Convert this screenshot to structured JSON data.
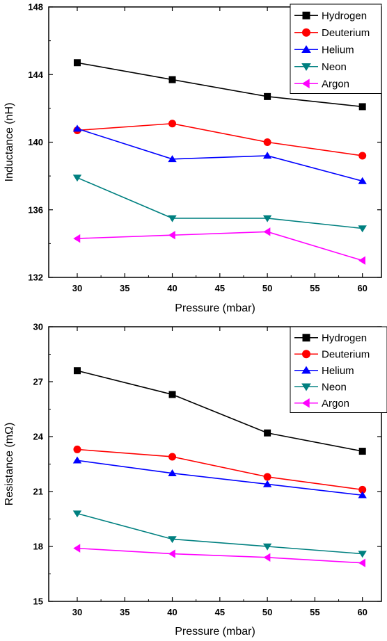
{
  "chart_data": [
    {
      "type": "line",
      "title": "",
      "xlabel": "Pressure (mbar)",
      "ylabel": "Inductance (nH)",
      "xlim": [
        27,
        62
      ],
      "ylim": [
        132,
        148
      ],
      "xticks": [
        30,
        35,
        40,
        45,
        50,
        55,
        60
      ],
      "yticks": [
        132,
        136,
        140,
        144,
        148
      ],
      "grid": false,
      "legend_position": "top-right",
      "x": [
        30,
        40,
        50,
        60
      ],
      "series": [
        {
          "name": "Hydrogen",
          "color": "#000000",
          "marker": "square",
          "values": [
            144.7,
            143.7,
            142.7,
            142.1
          ]
        },
        {
          "name": "Deuterium",
          "color": "#ff0000",
          "marker": "circle",
          "values": [
            140.7,
            141.1,
            140.0,
            139.2
          ]
        },
        {
          "name": "Helium",
          "color": "#0000ff",
          "marker": "triangle-up",
          "values": [
            140.8,
            139.0,
            139.2,
            137.7
          ]
        },
        {
          "name": "Neon",
          "color": "#008080",
          "marker": "triangle-down",
          "values": [
            137.9,
            135.5,
            135.5,
            134.9
          ]
        },
        {
          "name": "Argon",
          "color": "#ff00ff",
          "marker": "triangle-left",
          "values": [
            134.3,
            134.5,
            134.7,
            133.0
          ]
        }
      ]
    },
    {
      "type": "line",
      "title": "",
      "xlabel": "Pressure (mbar)",
      "ylabel": "Resistance (mΩ)",
      "xlim": [
        27,
        62
      ],
      "ylim": [
        15,
        30
      ],
      "xticks": [
        30,
        35,
        40,
        45,
        50,
        55,
        60
      ],
      "yticks": [
        15,
        18,
        21,
        24,
        27,
        30
      ],
      "grid": false,
      "legend_position": "top-right",
      "x": [
        30,
        40,
        50,
        60
      ],
      "series": [
        {
          "name": "Hydrogen",
          "color": "#000000",
          "marker": "square",
          "values": [
            27.6,
            26.3,
            24.2,
            23.2
          ]
        },
        {
          "name": "Deuterium",
          "color": "#ff0000",
          "marker": "circle",
          "values": [
            23.3,
            22.9,
            21.8,
            21.1
          ]
        },
        {
          "name": "Helium",
          "color": "#0000ff",
          "marker": "triangle-up",
          "values": [
            22.7,
            22.0,
            21.4,
            20.8
          ]
        },
        {
          "name": "Neon",
          "color": "#008080",
          "marker": "triangle-down",
          "values": [
            19.8,
            18.4,
            18.0,
            17.6
          ]
        },
        {
          "name": "Argon",
          "color": "#ff00ff",
          "marker": "triangle-left",
          "values": [
            17.9,
            17.6,
            17.4,
            17.1
          ]
        }
      ]
    }
  ]
}
